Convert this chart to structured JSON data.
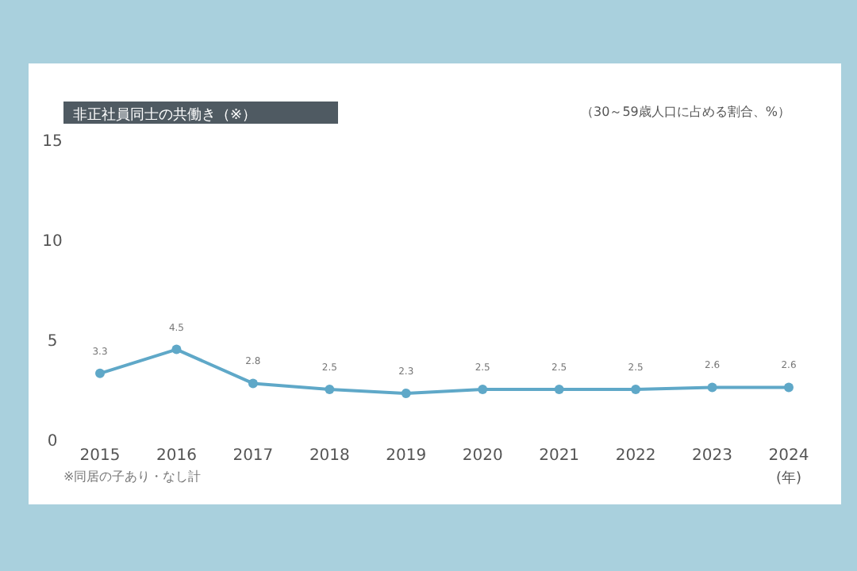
{
  "chart_data": {
    "type": "line",
    "title": "非正社員同士の共働き（※）",
    "ylabel": "（30～59歳人口に占める割合、%）",
    "xlabel": "(年)",
    "categories": [
      "2015",
      "2016",
      "2017",
      "2018",
      "2019",
      "2020",
      "2021",
      "2022",
      "2023",
      "2024"
    ],
    "series": [
      {
        "color": "#5fa8c8",
        "values": [
          3.3,
          4.5,
          2.8,
          2.5,
          2.3,
          2.5,
          2.5,
          2.5,
          2.6,
          2.6
        ]
      }
    ],
    "ylim": [
      0,
      15
    ],
    "yticks": [
      0,
      5,
      10,
      15
    ],
    "grid": false,
    "marker": "circle",
    "line_style": "solid",
    "data_labels": true,
    "annotations": [
      "※同居の子あり・なし計"
    ]
  }
}
